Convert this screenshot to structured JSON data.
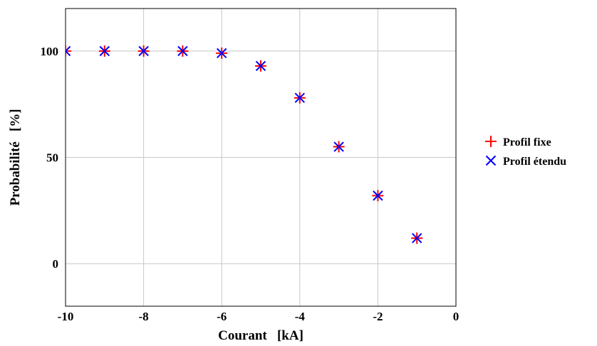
{
  "chart_data": {
    "type": "scatter",
    "xlabel": "Courant   [kA]",
    "ylabel": "Probabilité   [%]",
    "xlim": [
      -10,
      0
    ],
    "ylim": [
      -20,
      120
    ],
    "xticks": [
      -10,
      -8,
      -6,
      -4,
      -2,
      0
    ],
    "yticks": [
      0,
      50,
      100
    ],
    "grid": true,
    "legend_position": "right",
    "series": [
      {
        "name": "Profil fixe",
        "marker": "plus",
        "color": "#ff0000",
        "x": [
          -10,
          -9,
          -8,
          -7,
          -6,
          -5,
          -4,
          -3,
          -2,
          -1
        ],
        "y": [
          100,
          100,
          100,
          100,
          99,
          93,
          78,
          55,
          32,
          12
        ]
      },
      {
        "name": "Profil étendu",
        "marker": "cross",
        "color": "#0000ff",
        "x": [
          -10,
          -9,
          -8,
          -7,
          -6,
          -5,
          -4,
          -3,
          -2,
          -1
        ],
        "y": [
          100,
          100,
          100,
          100,
          99,
          93,
          78,
          55,
          32,
          12
        ]
      }
    ]
  }
}
